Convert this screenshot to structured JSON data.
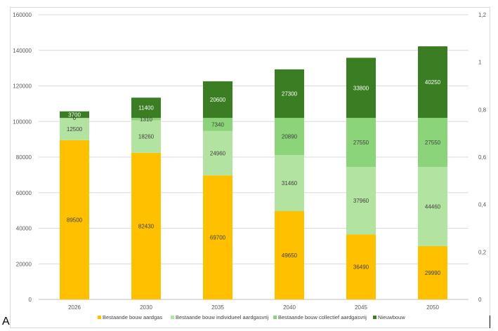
{
  "corner_label": "A",
  "chart_data": {
    "type": "stacked-bar",
    "title": "",
    "xlabel": "",
    "ylabel": "",
    "categories": [
      "2026",
      "2030",
      "2035",
      "2040",
      "2045",
      "2050"
    ],
    "series": [
      {
        "name": "Bestaande bouw aardgas",
        "color": "#FFC000",
        "label_color": "#404040",
        "values": [
          89500,
          82430,
          69700,
          49650,
          36490,
          29990
        ]
      },
      {
        "name": "Bestaande bouw individueel aardgasvrij",
        "color": "#B3E3A0",
        "label_color": "#404040",
        "values": [
          12500,
          18260,
          24960,
          31460,
          37960,
          44460
        ]
      },
      {
        "name": "Bestaande bouw collectief aardgasvrij",
        "color": "#8CD47A",
        "label_color": "#404040",
        "values": [
          0,
          1310,
          7340,
          20890,
          27550,
          27550
        ]
      },
      {
        "name": "Nieuwbouw",
        "color": "#3A7D22",
        "label_color": "#ffffff",
        "values": [
          3700,
          11400,
          20600,
          27300,
          33800,
          40250
        ]
      }
    ],
    "ylim": [
      0,
      160000
    ],
    "yticks": [
      "0",
      "20000",
      "40000",
      "60000",
      "80000",
      "100000",
      "120000",
      "140000",
      "160000"
    ],
    "y2lim": [
      0,
      1.2
    ],
    "y2ticks": [
      "0",
      "0,2",
      "0,4",
      "0,6",
      "0,8",
      "1",
      "1,2"
    ],
    "grid": true,
    "legend_position": "bottom"
  }
}
